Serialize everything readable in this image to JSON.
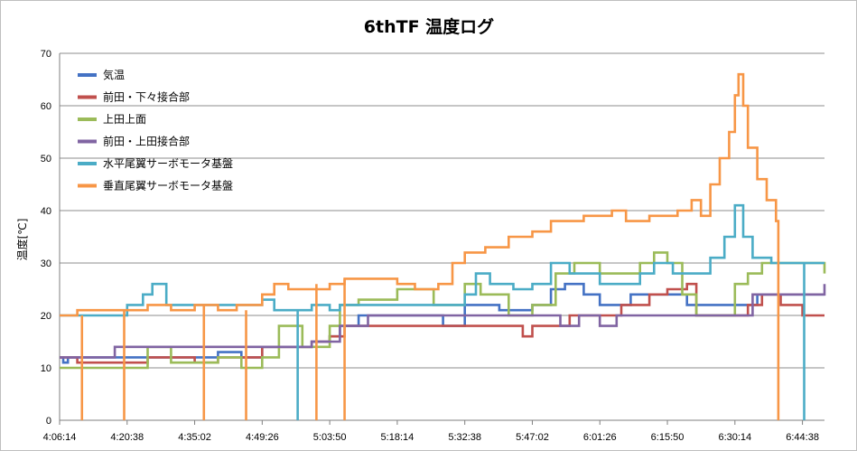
{
  "chart_data": {
    "type": "line",
    "title": "6thTF 温度ログ",
    "ylabel": "温度[℃]",
    "xlabel": "",
    "ylim": [
      0,
      70
    ],
    "yticks": [
      0,
      10,
      20,
      30,
      40,
      50,
      60,
      70
    ],
    "grid": true,
    "legend_position": "top-left",
    "x_ticks": [
      "4:06:14",
      "4:20:38",
      "4:35:02",
      "4:49:26",
      "5:03:50",
      "5:18:14",
      "5:32:38",
      "5:47:02",
      "6:01:26",
      "6:15:50",
      "6:30:14",
      "6:44:38"
    ],
    "x_start": "4:06:14",
    "x_end": "6:49:20",
    "series": [
      {
        "name": "気温",
        "color": "#4472c4",
        "points": [
          [
            "4:06:14",
            12
          ],
          [
            "4:07:00",
            11
          ],
          [
            "4:08:00",
            12
          ],
          [
            "4:20:38",
            12
          ],
          [
            "4:30:00",
            12
          ],
          [
            "4:35:02",
            12
          ],
          [
            "4:40:00",
            13
          ],
          [
            "4:45:00",
            12
          ],
          [
            "4:49:26",
            14
          ],
          [
            "4:55:00",
            14
          ],
          [
            "5:00:00",
            15
          ],
          [
            "5:03:50",
            16
          ],
          [
            "5:06:00",
            18
          ],
          [
            "5:10:00",
            20
          ],
          [
            "5:18:14",
            20
          ],
          [
            "5:25:00",
            20
          ],
          [
            "5:28:00",
            18
          ],
          [
            "5:32:38",
            22
          ],
          [
            "5:36:00",
            22
          ],
          [
            "5:40:00",
            21
          ],
          [
            "5:47:02",
            22
          ],
          [
            "5:51:00",
            25
          ],
          [
            "5:54:00",
            26
          ],
          [
            "5:58:00",
            24
          ],
          [
            "6:01:26",
            22
          ],
          [
            "6:05:00",
            22
          ],
          [
            "6:08:00",
            24
          ],
          [
            "6:12:00",
            24
          ],
          [
            "6:15:50",
            24
          ],
          [
            "6:20:00",
            22
          ],
          [
            "6:25:00",
            22
          ],
          [
            "6:30:14",
            22
          ],
          [
            "6:35:00",
            24
          ],
          [
            "6:40:00",
            24
          ],
          [
            "6:44:38",
            24
          ],
          [
            "6:49:20",
            24
          ]
        ]
      },
      {
        "name": "前田・下々接合部",
        "color": "#c0504d",
        "points": [
          [
            "4:06:14",
            12
          ],
          [
            "4:10:00",
            11
          ],
          [
            "4:20:38",
            11
          ],
          [
            "4:25:00",
            12
          ],
          [
            "4:35:02",
            11
          ],
          [
            "4:40:00",
            12
          ],
          [
            "4:49:26",
            14
          ],
          [
            "4:55:00",
            14
          ],
          [
            "5:00:00",
            15
          ],
          [
            "5:03:50",
            16
          ],
          [
            "5:07:00",
            18
          ],
          [
            "5:12:00",
            18
          ],
          [
            "5:18:14",
            18
          ],
          [
            "5:25:00",
            18
          ],
          [
            "5:32:38",
            18
          ],
          [
            "5:40:00",
            18
          ],
          [
            "5:45:00",
            16
          ],
          [
            "5:47:02",
            18
          ],
          [
            "5:55:00",
            20
          ],
          [
            "6:01:26",
            20
          ],
          [
            "6:06:00",
            22
          ],
          [
            "6:12:00",
            24
          ],
          [
            "6:15:50",
            25
          ],
          [
            "6:20:00",
            26
          ],
          [
            "6:22:00",
            20
          ],
          [
            "6:30:14",
            20
          ],
          [
            "6:33:00",
            22
          ],
          [
            "6:36:00",
            24
          ],
          [
            "6:40:00",
            22
          ],
          [
            "6:44:38",
            20
          ],
          [
            "6:49:20",
            20
          ]
        ]
      },
      {
        "name": "上田上面",
        "color": "#9bbb59",
        "points": [
          [
            "4:06:14",
            10
          ],
          [
            "4:20:38",
            10
          ],
          [
            "4:25:00",
            14
          ],
          [
            "4:30:00",
            11
          ],
          [
            "4:35:02",
            11
          ],
          [
            "4:40:00",
            12
          ],
          [
            "4:45:00",
            10
          ],
          [
            "4:49:26",
            12
          ],
          [
            "4:53:00",
            18
          ],
          [
            "4:58:00",
            14
          ],
          [
            "5:03:50",
            18
          ],
          [
            "5:06:00",
            22
          ],
          [
            "5:10:00",
            23
          ],
          [
            "5:18:14",
            25
          ],
          [
            "5:22:00",
            25
          ],
          [
            "5:26:00",
            22
          ],
          [
            "5:32:38",
            26
          ],
          [
            "5:36:00",
            24
          ],
          [
            "5:42:00",
            20
          ],
          [
            "5:47:02",
            22
          ],
          [
            "5:52:00",
            28
          ],
          [
            "5:56:00",
            30
          ],
          [
            "6:01:26",
            28
          ],
          [
            "6:06:00",
            28
          ],
          [
            "6:10:00",
            30
          ],
          [
            "6:13:00",
            32
          ],
          [
            "6:15:50",
            30
          ],
          [
            "6:19:00",
            24
          ],
          [
            "6:22:00",
            20
          ],
          [
            "6:26:00",
            20
          ],
          [
            "6:30:14",
            26
          ],
          [
            "6:33:00",
            28
          ],
          [
            "6:36:00",
            30
          ],
          [
            "6:40:00",
            30
          ],
          [
            "6:44:38",
            30
          ],
          [
            "6:49:20",
            28
          ]
        ]
      },
      {
        "name": "前田・上田接合部",
        "color": "#8064a2",
        "points": [
          [
            "4:06:14",
            12
          ],
          [
            "4:15:00",
            12
          ],
          [
            "4:18:00",
            14
          ],
          [
            "4:35:02",
            14
          ],
          [
            "4:49:26",
            14
          ],
          [
            "4:58:00",
            14
          ],
          [
            "5:00:00",
            15
          ],
          [
            "5:03:50",
            15
          ],
          [
            "5:06:00",
            18
          ],
          [
            "5:12:00",
            20
          ],
          [
            "5:18:14",
            20
          ],
          [
            "5:28:00",
            20
          ],
          [
            "5:32:38",
            20
          ],
          [
            "5:40:00",
            20
          ],
          [
            "5:47:02",
            20
          ],
          [
            "5:53:00",
            18
          ],
          [
            "5:57:00",
            20
          ],
          [
            "6:01:26",
            18
          ],
          [
            "6:05:00",
            20
          ],
          [
            "6:15:50",
            20
          ],
          [
            "6:30:14",
            20
          ],
          [
            "6:34:00",
            24
          ],
          [
            "6:44:38",
            24
          ],
          [
            "6:49:20",
            26
          ]
        ]
      },
      {
        "name": "水平尾翼サーボモータ基盤",
        "color": "#4bacc6",
        "points": [
          [
            "4:06:14",
            20
          ],
          [
            "4:10:00",
            20
          ],
          [
            "4:17:00",
            20
          ],
          [
            "4:20:38",
            22
          ],
          [
            "4:24:00",
            24
          ],
          [
            "4:26:00",
            26
          ],
          [
            "4:29:00",
            22
          ],
          [
            "4:35:02",
            22
          ],
          [
            "4:40:00",
            22
          ],
          [
            "4:46:00",
            22
          ],
          [
            "4:49:26",
            23
          ],
          [
            "4:52:00",
            21
          ],
          [
            "4:56:00",
            21
          ],
          [
            "5:00:00",
            22
          ],
          [
            "5:03:50",
            21
          ],
          [
            "5:06:00",
            22
          ],
          [
            "5:10:00",
            22
          ],
          [
            "5:18:14",
            22
          ],
          [
            "5:25:00",
            22
          ],
          [
            "5:32:38",
            24
          ],
          [
            "5:35:00",
            28
          ],
          [
            "5:38:00",
            26
          ],
          [
            "5:43:00",
            25
          ],
          [
            "5:47:02",
            26
          ],
          [
            "5:51:00",
            30
          ],
          [
            "5:55:00",
            28
          ],
          [
            "6:01:26",
            26
          ],
          [
            "6:06:00",
            26
          ],
          [
            "6:10:00",
            28
          ],
          [
            "6:13:00",
            30
          ],
          [
            "6:17:00",
            28
          ],
          [
            "6:21:00",
            28
          ],
          [
            "6:25:00",
            31
          ],
          [
            "6:28:00",
            35
          ],
          [
            "6:30:14",
            41
          ],
          [
            "6:32:00",
            35
          ],
          [
            "6:34:00",
            31
          ],
          [
            "6:38:00",
            30
          ],
          [
            "6:44:38",
            30
          ],
          [
            "6:49:20",
            30
          ]
        ]
      },
      {
        "name": "垂直尾翼サーボモータ基盤",
        "color": "#f79646",
        "points": [
          [
            "4:06:14",
            20
          ],
          [
            "4:10:00",
            21
          ],
          [
            "4:20:38",
            21
          ],
          [
            "4:25:00",
            22
          ],
          [
            "4:30:00",
            21
          ],
          [
            "4:35:02",
            22
          ],
          [
            "4:40:00",
            21
          ],
          [
            "4:44:00",
            22
          ],
          [
            "4:49:26",
            24
          ],
          [
            "4:52:00",
            26
          ],
          [
            "4:55:00",
            25
          ],
          [
            "5:03:50",
            26
          ],
          [
            "5:07:00",
            27
          ],
          [
            "5:12:00",
            27
          ],
          [
            "5:18:14",
            26
          ],
          [
            "5:22:00",
            25
          ],
          [
            "5:27:00",
            26
          ],
          [
            "5:30:00",
            30
          ],
          [
            "5:32:38",
            32
          ],
          [
            "5:37:00",
            33
          ],
          [
            "5:42:00",
            35
          ],
          [
            "5:47:02",
            36
          ],
          [
            "5:51:00",
            38
          ],
          [
            "5:54:00",
            38
          ],
          [
            "5:58:00",
            39
          ],
          [
            "6:01:26",
            39
          ],
          [
            "6:04:00",
            40
          ],
          [
            "6:07:00",
            38
          ],
          [
            "6:12:00",
            39
          ],
          [
            "6:15:50",
            39
          ],
          [
            "6:18:00",
            40
          ],
          [
            "6:21:00",
            42
          ],
          [
            "6:23:00",
            39
          ],
          [
            "6:25:00",
            45
          ],
          [
            "6:27:00",
            50
          ],
          [
            "6:29:00",
            55
          ],
          [
            "6:30:14",
            62
          ],
          [
            "6:31:00",
            66
          ],
          [
            "6:32:00",
            60
          ],
          [
            "6:33:00",
            52
          ],
          [
            "6:35:00",
            46
          ],
          [
            "6:37:00",
            42
          ],
          [
            "6:39:00",
            38
          ],
          [
            "6:39:30",
            0
          ]
        ]
      }
    ],
    "dropouts": [
      {
        "series": 5,
        "time": "4:11:00",
        "value": 20
      },
      {
        "series": 5,
        "time": "4:20:00",
        "value": 21
      },
      {
        "series": 5,
        "time": "4:37:00",
        "value": 22
      },
      {
        "series": 5,
        "time": "4:46:00",
        "value": 21
      },
      {
        "series": 5,
        "time": "5:01:00",
        "value": 26
      },
      {
        "series": 5,
        "time": "5:07:00",
        "value": 27
      },
      {
        "series": 4,
        "time": "4:57:00",
        "value": 21
      },
      {
        "series": 4,
        "time": "6:45:00",
        "value": 30
      }
    ]
  }
}
